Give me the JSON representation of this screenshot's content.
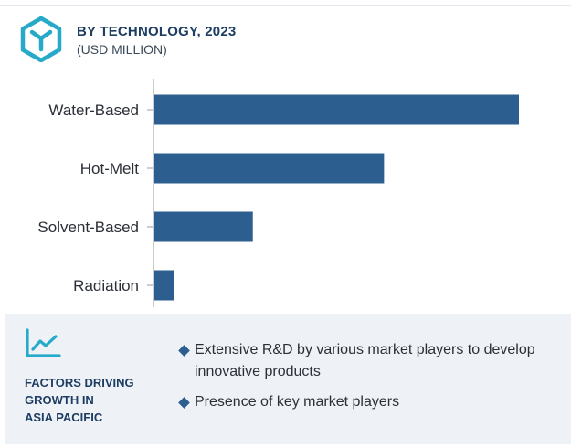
{
  "header": {
    "title": "BY TECHNOLOGY, 2023",
    "subtitle": "(USD MILLION)",
    "icon": "cube-logo-icon"
  },
  "chart_data": {
    "type": "bar",
    "orientation": "horizontal",
    "title": "BY TECHNOLOGY, 2023",
    "subtitle": "(USD MILLION)",
    "categories": [
      "Water-Based",
      "Hot-Melt",
      "Solvent-Based",
      "Radiation"
    ],
    "values": [
      100,
      63,
      27,
      5.5
    ],
    "xlim": [
      0,
      100
    ],
    "grid": false,
    "bar_color": "#2c5f8f",
    "axis_color": "#b8bcc4"
  },
  "factors": {
    "icon": "line-chart-icon",
    "title_lines": [
      "FACTORS DRIVING",
      "GROWTH IN",
      "ASIA PACIFIC"
    ],
    "bullets": [
      "Extensive R&D by various market players to develop innovative products",
      "Presence of key market players"
    ]
  },
  "colors": {
    "accent": "#27a9c9",
    "heading": "#1d3d63",
    "bar": "#2c5f8f",
    "panel": "#eef2f7"
  }
}
